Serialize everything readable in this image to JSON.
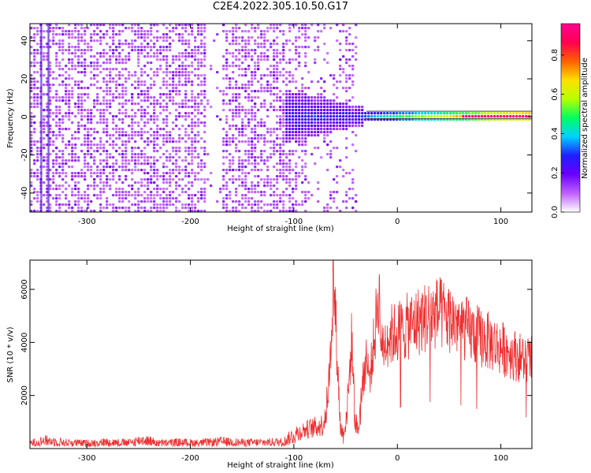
{
  "title": "C2E4.2022.305.10.50.G17",
  "colors": {
    "snr_line": "#ef3030",
    "axes": "#000000",
    "background": "#ffffff"
  },
  "chart_data": [
    {
      "type": "heatmap",
      "xlabel": "Height of straight line (km)",
      "ylabel": "Frequency (Hz)",
      "xlim": [
        -355,
        130
      ],
      "ylim": [
        -50,
        49
      ],
      "xticks": [
        -300,
        -200,
        -100,
        0,
        100
      ],
      "yticks": [
        -40,
        -20,
        0,
        20,
        40
      ],
      "colorbar": {
        "label": "Normalized spectral amplitude",
        "range": [
          0.0,
          0.96
        ],
        "ticks": [
          0.0,
          0.2,
          0.4,
          0.6,
          0.8
        ],
        "colormap": [
          "#ffffff",
          "#c060ff",
          "#6a00ff",
          "#1e1eff",
          "#00d0ff",
          "#00ff60",
          "#b8ff00",
          "#ffe000",
          "#ff6000",
          "#ff0050",
          "#ff0090"
        ]
      },
      "features": {
        "carrier_line_frequency_hz": 1,
        "signal_onset_height_km": -110,
        "strong_signal_from_km": -35,
        "peak_amplitude_region_km": [
          60,
          125
        ]
      }
    },
    {
      "type": "line",
      "xlabel": "Height of straight line (km)",
      "ylabel": "SNR (10 * v/v)",
      "xlim": [
        -355,
        130
      ],
      "ylim": [
        0,
        7100
      ],
      "xticks": [
        -300,
        -200,
        -100,
        0,
        100
      ],
      "yticks": [
        2000,
        4000,
        6000
      ],
      "series": [
        {
          "points": [
            [
              -355,
              200
            ],
            [
              -340,
              300
            ],
            [
              -320,
              220
            ],
            [
              -300,
              200
            ],
            [
              -280,
              240
            ],
            [
              -260,
              210
            ],
            [
              -245,
              330
            ],
            [
              -230,
              200
            ],
            [
              -210,
              230
            ],
            [
              -190,
              210
            ],
            [
              -170,
              260
            ],
            [
              -150,
              220
            ],
            [
              -130,
              230
            ],
            [
              -110,
              250
            ],
            [
              -100,
              500
            ],
            [
              -90,
              700
            ],
            [
              -80,
              800
            ],
            [
              -72,
              900
            ],
            [
              -68,
              1600
            ],
            [
              -65,
              3200
            ],
            [
              -62,
              6500
            ],
            [
              -60,
              5200
            ],
            [
              -57,
              2500
            ],
            [
              -55,
              800
            ],
            [
              -52,
              500
            ],
            [
              -48,
              1700
            ],
            [
              -44,
              4200
            ],
            [
              -41,
              1200
            ],
            [
              -38,
              600
            ],
            [
              -34,
              2300
            ],
            [
              -30,
              3500
            ],
            [
              -27,
              2600
            ],
            [
              -22,
              4200
            ],
            [
              -18,
              6000
            ],
            [
              -15,
              3700
            ],
            [
              -10,
              4200
            ],
            [
              -5,
              4300
            ],
            [
              0,
              4400
            ],
            [
              10,
              4600
            ],
            [
              20,
              4800
            ],
            [
              30,
              5000
            ],
            [
              40,
              5100
            ],
            [
              50,
              4900
            ],
            [
              60,
              4700
            ],
            [
              70,
              4400
            ],
            [
              80,
              4200
            ],
            [
              90,
              4000
            ],
            [
              100,
              3800
            ],
            [
              110,
              3600
            ],
            [
              120,
              3400
            ],
            [
              130,
              3300
            ]
          ]
        }
      ]
    }
  ]
}
